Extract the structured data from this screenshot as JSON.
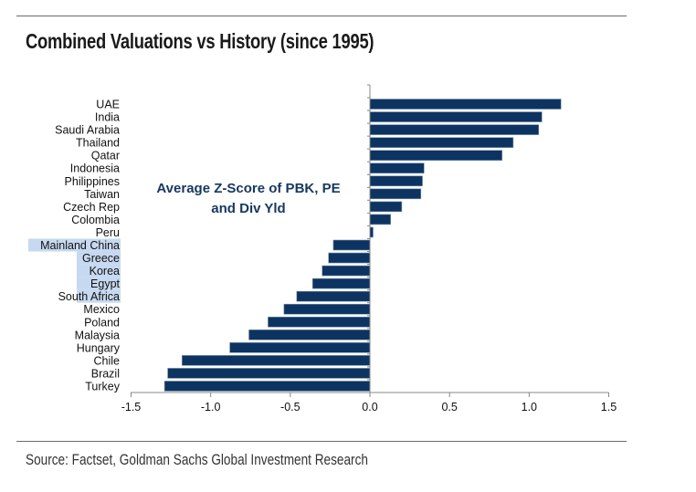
{
  "title": "Combined Valuations vs History (since 1995)",
  "source": "Source: Factset, Goldman Sachs Global Investment Research",
  "chart_data": {
    "type": "bar",
    "orientation": "horizontal",
    "title": "Combined Valuations vs History (since 1995)",
    "annotation": [
      "Average Z-Score of PBK, PE",
      "and Div Yld"
    ],
    "categories": [
      "UAE",
      "India",
      "Saudi Arabia",
      "Thailand",
      "Qatar",
      "Indonesia",
      "Philippines",
      "Taiwan",
      "Czech Rep",
      "Colombia",
      "Peru",
      "Mainland China",
      "Greece",
      "Korea",
      "Egypt",
      "South Africa",
      "Mexico",
      "Poland",
      "Malaysia",
      "Hungary",
      "Chile",
      "Brazil",
      "Turkey"
    ],
    "values": [
      1.2,
      1.08,
      1.06,
      0.9,
      0.83,
      0.34,
      0.33,
      0.32,
      0.2,
      0.13,
      0.02,
      -0.23,
      -0.26,
      -0.3,
      -0.36,
      -0.46,
      -0.54,
      -0.64,
      -0.76,
      -0.88,
      -1.18,
      -1.27,
      -1.29
    ],
    "highlighted_categories": [
      "Mainland China",
      "Greece",
      "Korea",
      "Egypt",
      "South Africa"
    ],
    "xlim": [
      -1.5,
      1.5
    ],
    "xticks": [
      "-1.5",
      "-1.0",
      "-0.5",
      "0.0",
      "0.5",
      "1.0",
      "1.5"
    ],
    "xlabel": "",
    "ylabel": "",
    "grid": false,
    "legend": "none",
    "colors": {
      "bar": "#0d3461",
      "highlight": "#c6d9f0",
      "annotation": "#17375e"
    }
  }
}
